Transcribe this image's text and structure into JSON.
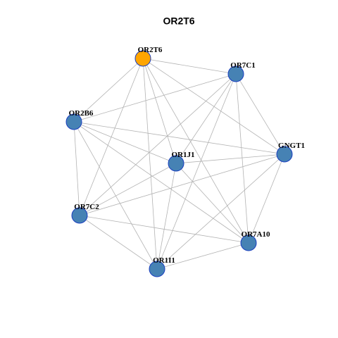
{
  "title": "OR2T6",
  "nodes": [
    {
      "label": "OR2T6",
      "color": "#ffa500"
    },
    {
      "label": "OR7C1",
      "color": "#4682b4"
    },
    {
      "label": "OR2B6",
      "color": "#4682b4"
    },
    {
      "label": "GNGT1",
      "color": "#4682b4"
    },
    {
      "label": "OR1J1",
      "color": "#4682b4"
    },
    {
      "label": "OR7C2",
      "color": "#4682b4"
    },
    {
      "label": "OR7A10",
      "color": "#4682b4"
    },
    {
      "label": "OR1I1",
      "color": "#4682b4"
    }
  ],
  "edges": [
    [
      0,
      1
    ],
    [
      0,
      2
    ],
    [
      0,
      3
    ],
    [
      0,
      4
    ],
    [
      0,
      5
    ],
    [
      0,
      6
    ],
    [
      0,
      7
    ],
    [
      1,
      2
    ],
    [
      1,
      3
    ],
    [
      1,
      4
    ],
    [
      1,
      5
    ],
    [
      1,
      6
    ],
    [
      1,
      7
    ],
    [
      2,
      3
    ],
    [
      2,
      4
    ],
    [
      2,
      5
    ],
    [
      2,
      6
    ],
    [
      2,
      7
    ],
    [
      3,
      4
    ],
    [
      3,
      5
    ],
    [
      3,
      6
    ],
    [
      3,
      7
    ],
    [
      4,
      5
    ],
    [
      4,
      6
    ],
    [
      4,
      7
    ],
    [
      5,
      6
    ],
    [
      5,
      7
    ],
    [
      6,
      7
    ]
  ]
}
